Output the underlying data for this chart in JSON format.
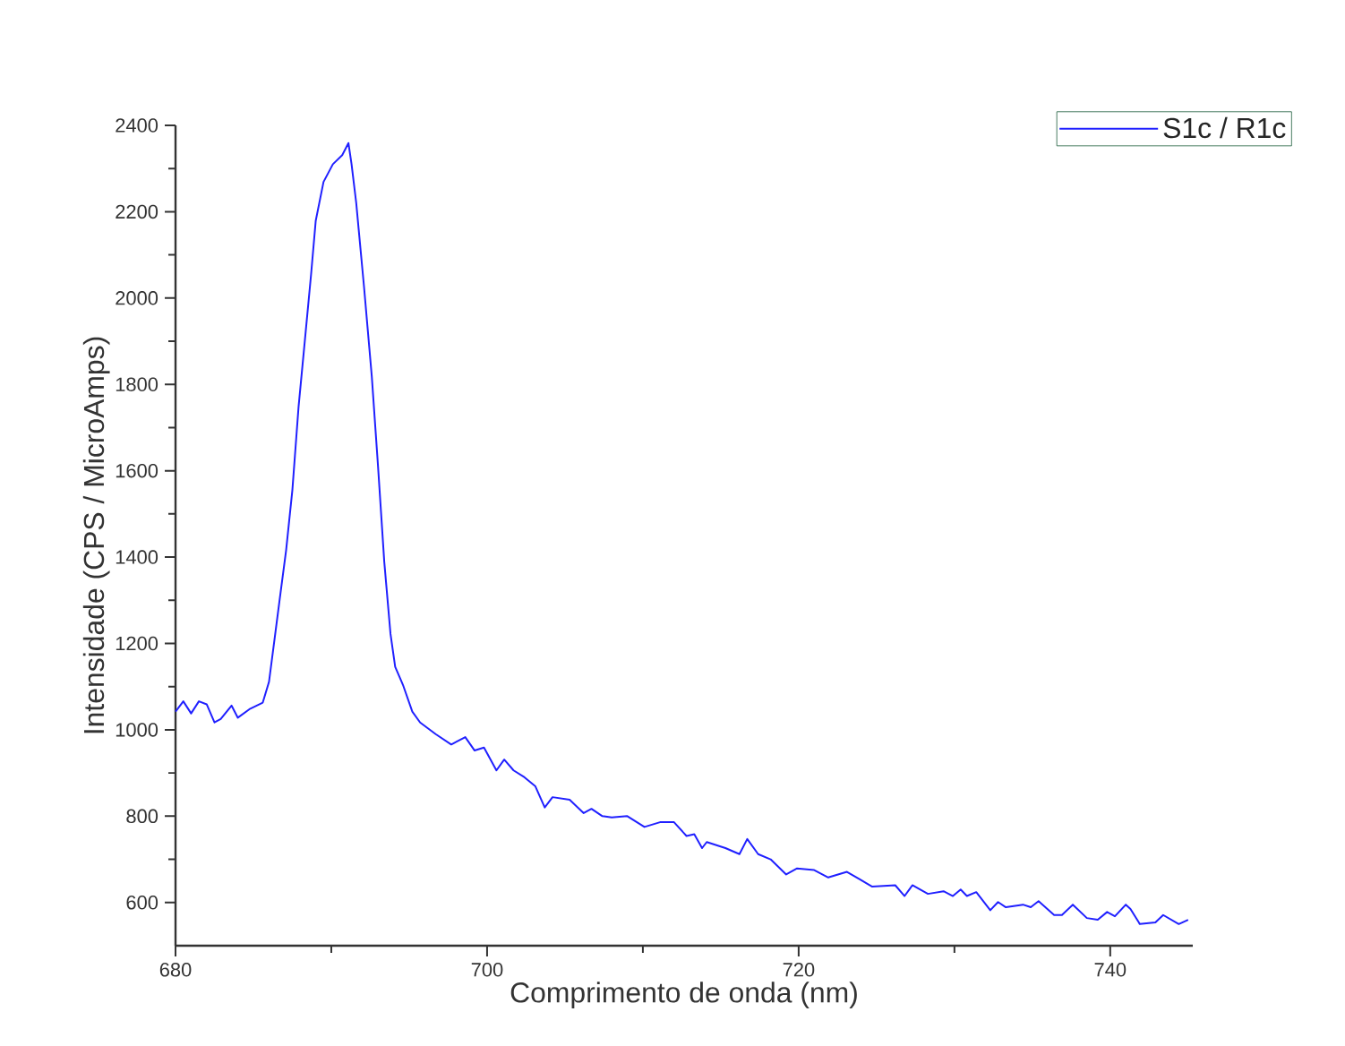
{
  "chart_data": {
    "type": "line",
    "xlabel": "Comprimento de onda (nm)",
    "ylabel": "Intensidade (CPS / MicroAmps)",
    "xlim": [
      680,
      745.3
    ],
    "ylim": [
      500,
      2400
    ],
    "xticks": [
      680,
      700,
      720,
      740
    ],
    "yticks": [
      600,
      800,
      1000,
      1200,
      1400,
      1600,
      1800,
      2000,
      2200,
      2400
    ],
    "legend": "top right",
    "marker": "none",
    "line_style": "solid",
    "series": [
      {
        "name": "S1c / R1c",
        "color": "#2020ff",
        "x": [
          680.0,
          680.5,
          681.0,
          681.5,
          682.0,
          682.5,
          682.9,
          683.6,
          684.0,
          684.8,
          685.6,
          686.0,
          686.4,
          686.7,
          687.1,
          687.5,
          687.9,
          688.3,
          688.7,
          689.0,
          689.5,
          690.1,
          690.7,
          691.1,
          691.3,
          691.6,
          692.1,
          692.6,
          693.0,
          693.4,
          693.8,
          694.1,
          694.6,
          695.2,
          695.7,
          696.7,
          697.7,
          698.6,
          699.2,
          699.8,
          700.6,
          701.1,
          701.7,
          702.4,
          703.1,
          703.7,
          704.2,
          705.3,
          706.2,
          706.7,
          707.4,
          708.0,
          709.0,
          710.1,
          711.1,
          712.0,
          712.8,
          713.3,
          713.8,
          714.1,
          715.3,
          716.2,
          716.7,
          717.4,
          718.2,
          719.2,
          719.9,
          721.0,
          721.9,
          723.1,
          723.9,
          724.7,
          726.2,
          726.8,
          727.3,
          728.3,
          729.3,
          729.9,
          730.4,
          730.8,
          731.4,
          732.3,
          732.8,
          733.3,
          734.4,
          734.9,
          735.4,
          736.4,
          736.9,
          737.6,
          738.5,
          739.2,
          739.8,
          740.3,
          741.0,
          741.3,
          741.9,
          742.9,
          743.4,
          744.4,
          745.0
        ],
        "values": [
          1042,
          1066,
          1038,
          1066,
          1059,
          1017,
          1025,
          1056,
          1028,
          1049,
          1063,
          1111,
          1222,
          1306,
          1416,
          1555,
          1749,
          1901,
          2054,
          2179,
          2269,
          2310,
          2331,
          2359,
          2310,
          2220,
          2026,
          1818,
          1610,
          1389,
          1222,
          1146,
          1104,
          1042,
          1017,
          990,
          966,
          983,
          952,
          959,
          906,
          931,
          906,
          890,
          869,
          820,
          844,
          838,
          807,
          817,
          800,
          797,
          800,
          775,
          786,
          786,
          754,
          758,
          726,
          740,
          726,
          712,
          747,
          712,
          700,
          665,
          679,
          675,
          658,
          671,
          654,
          637,
          640,
          615,
          640,
          620,
          626,
          615,
          630,
          615,
          624,
          582,
          601,
          589,
          595,
          589,
          603,
          571,
          571,
          595,
          564,
          560,
          578,
          568,
          595,
          585,
          550,
          554,
          571,
          550,
          560
        ]
      }
    ]
  }
}
